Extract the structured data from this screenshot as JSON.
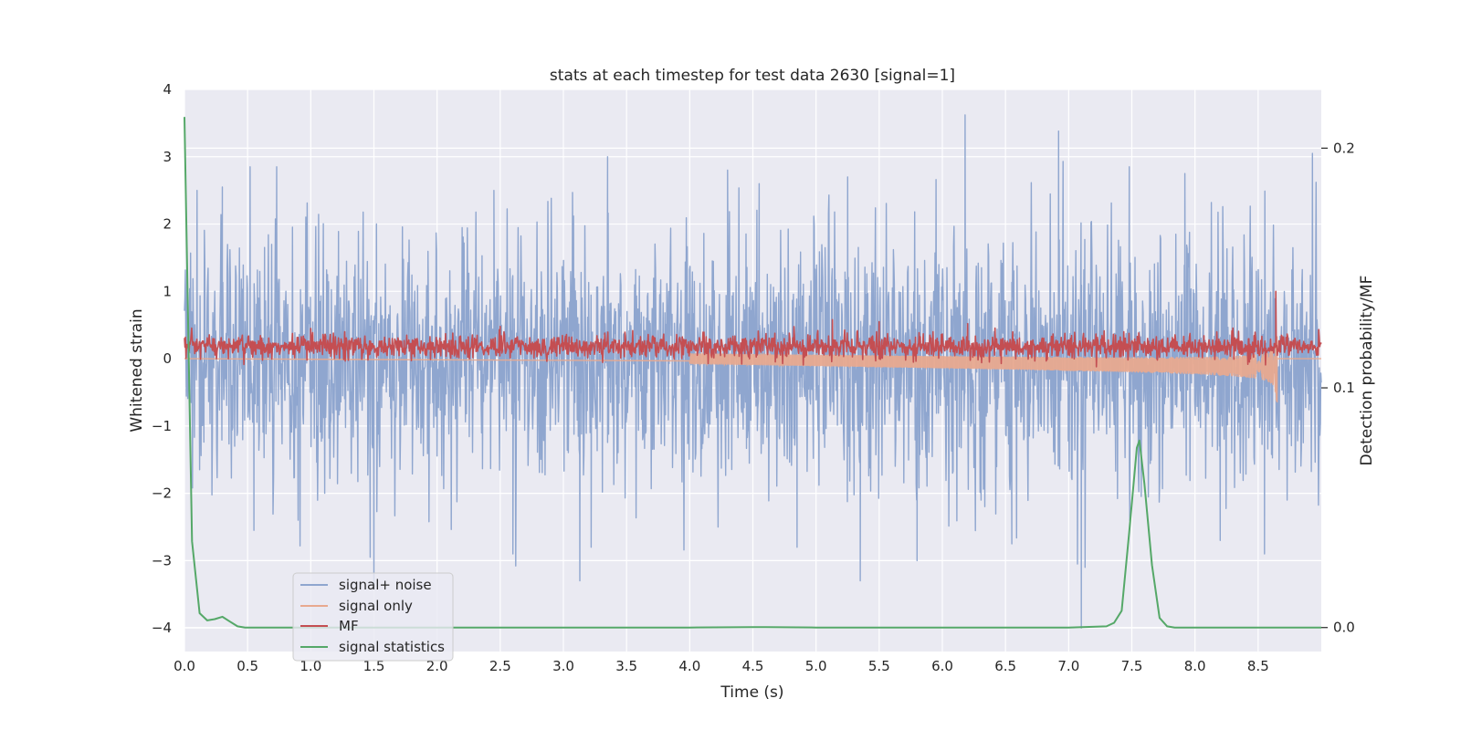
{
  "chart_data": {
    "type": "line",
    "title": "stats at each timestep for test data 2630 [signal=1]",
    "xlabel": "Time (s)",
    "ylabel": "Whitened strain",
    "y2label": "Detection probability/MF",
    "xlim": [
      0.0,
      9.0
    ],
    "ylim": [
      -4.35,
      4.0
    ],
    "y2lim": [
      -0.01,
      0.2245
    ],
    "x_ticks": [
      "0.0",
      "0.5",
      "1.0",
      "1.5",
      "2.0",
      "2.5",
      "3.0",
      "3.5",
      "4.0",
      "4.5",
      "5.0",
      "5.5",
      "6.0",
      "6.5",
      "7.0",
      "7.5",
      "8.0",
      "8.5"
    ],
    "x_tick_values": [
      0.0,
      0.5,
      1.0,
      1.5,
      2.0,
      2.5,
      3.0,
      3.5,
      4.0,
      4.5,
      5.0,
      5.5,
      6.0,
      6.5,
      7.0,
      7.5,
      8.0,
      8.5
    ],
    "y_ticks": [
      "−4",
      "−3",
      "−2",
      "−1",
      "0",
      "1",
      "2",
      "3",
      "4"
    ],
    "y_tick_values": [
      -4,
      -3,
      -2,
      -1,
      0,
      1,
      2,
      3,
      4
    ],
    "y2_ticks": [
      "0.0",
      "0.1",
      "0.2"
    ],
    "y2_tick_values": [
      0.0,
      0.1,
      0.2
    ],
    "grid": true,
    "legend_position": "lower-left",
    "series": [
      {
        "name": "signal+ noise",
        "axis": "left",
        "style": "noise-band",
        "color": "#8fa6cf",
        "mean": 0.0,
        "sigma": 0.9,
        "peaks": [
          {
            "x": 0.02,
            "y": 1.5
          },
          {
            "x": 0.1,
            "y": 2.5
          },
          {
            "x": 0.3,
            "y": 2.55
          },
          {
            "x": 0.52,
            "y": 2.85
          },
          {
            "x": 0.73,
            "y": 2.85
          },
          {
            "x": 1.52,
            "y": 2.0
          },
          {
            "x": 2.45,
            "y": 2.5
          },
          {
            "x": 3.35,
            "y": 3.0
          },
          {
            "x": 4.3,
            "y": 2.8
          },
          {
            "x": 4.55,
            "y": 2.6
          },
          {
            "x": 5.25,
            "y": 2.7
          },
          {
            "x": 6.18,
            "y": 3.62
          },
          {
            "x": 6.92,
            "y": 3.38
          },
          {
            "x": 7.48,
            "y": 2.85
          },
          {
            "x": 7.92,
            "y": 2.75
          },
          {
            "x": 8.93,
            "y": 3.05
          },
          {
            "x": 0.55,
            "y": -2.55
          },
          {
            "x": 0.9,
            "y": -2.4
          },
          {
            "x": 1.47,
            "y": -2.95
          },
          {
            "x": 1.5,
            "y": -3.4
          },
          {
            "x": 2.6,
            "y": -2.9
          },
          {
            "x": 3.13,
            "y": -3.3
          },
          {
            "x": 3.22,
            "y": -2.8
          },
          {
            "x": 4.85,
            "y": -2.8
          },
          {
            "x": 5.35,
            "y": -3.3
          },
          {
            "x": 5.8,
            "y": -3.0
          },
          {
            "x": 6.55,
            "y": -2.75
          },
          {
            "x": 7.07,
            "y": -3.05
          },
          {
            "x": 7.1,
            "y": -4.0
          },
          {
            "x": 7.13,
            "y": -3.1
          },
          {
            "x": 8.2,
            "y": -2.7
          },
          {
            "x": 8.55,
            "y": -2.9
          }
        ]
      },
      {
        "name": "signal only",
        "axis": "left",
        "style": "chirp",
        "color": "#e8a98f",
        "start_x": 4.0,
        "end_x": 8.65,
        "end_amplitude": 0.55,
        "end_min": -0.65,
        "end_max": 0.45
      },
      {
        "name": "MF",
        "axis": "left",
        "style": "noise-band",
        "color": "#c44e52",
        "mean": 0.18,
        "sigma": 0.09,
        "peaks": [
          {
            "x": 5.13,
            "y": 0.58
          },
          {
            "x": 5.5,
            "y": 0.55
          },
          {
            "x": 6.2,
            "y": 0.52
          },
          {
            "x": 8.64,
            "y": 1.0
          },
          {
            "x": 2.5,
            "y": 0.48
          },
          {
            "x": 1.0,
            "y": 0.45
          }
        ]
      },
      {
        "name": "signal statistics",
        "axis": "right",
        "style": "line",
        "color": "#55a868",
        "x": [
          0.0,
          0.06,
          0.12,
          0.18,
          0.24,
          0.3,
          0.36,
          0.42,
          0.48,
          0.6,
          1.0,
          2.0,
          3.0,
          4.0,
          4.5,
          4.6,
          5.0,
          6.0,
          7.0,
          7.3,
          7.36,
          7.42,
          7.48,
          7.54,
          7.56,
          7.6,
          7.66,
          7.72,
          7.78,
          7.84,
          8.0,
          8.5,
          9.0
        ],
        "y": [
          0.213,
          0.036,
          0.006,
          0.003,
          0.0035,
          0.0045,
          0.0025,
          0.0005,
          0.0,
          0.0,
          0.0,
          0.0,
          0.0,
          0.0,
          0.0002,
          0.0002,
          0.0,
          0.0,
          0.0,
          0.0005,
          0.002,
          0.007,
          0.04,
          0.075,
          0.078,
          0.06,
          0.026,
          0.004,
          0.0005,
          0.0,
          0.0,
          0.0,
          0.0
        ]
      }
    ]
  }
}
